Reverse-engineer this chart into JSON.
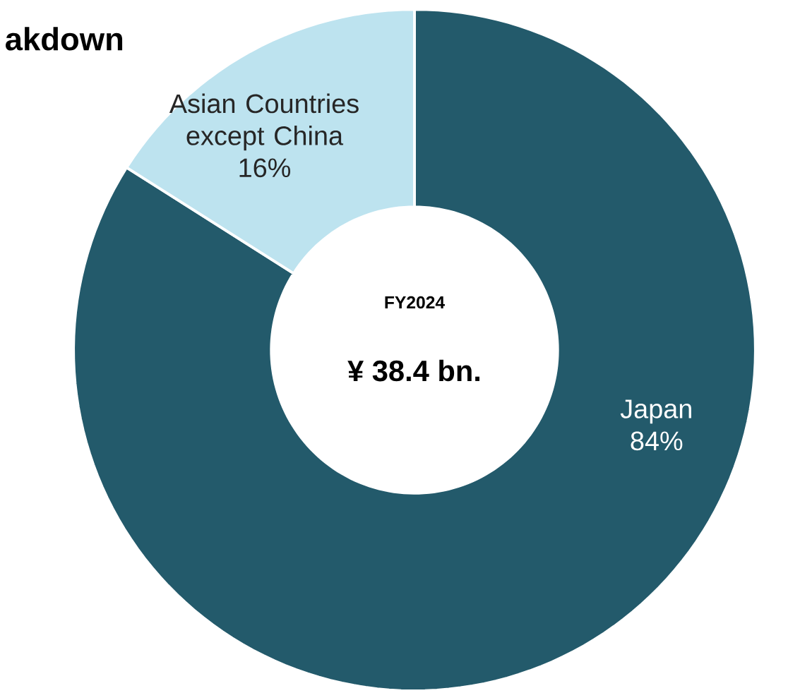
{
  "chart_data": {
    "type": "donut",
    "title": "akdown",
    "categories": [
      "Japan",
      "Asian Countries except China"
    ],
    "values": [
      84,
      16
    ],
    "value_labels": [
      "84%",
      "16%"
    ],
    "colors": [
      "#235a6b",
      "#bde3ef"
    ],
    "annotations": [
      "FY2024",
      "¥  38.4 bn."
    ]
  }
}
